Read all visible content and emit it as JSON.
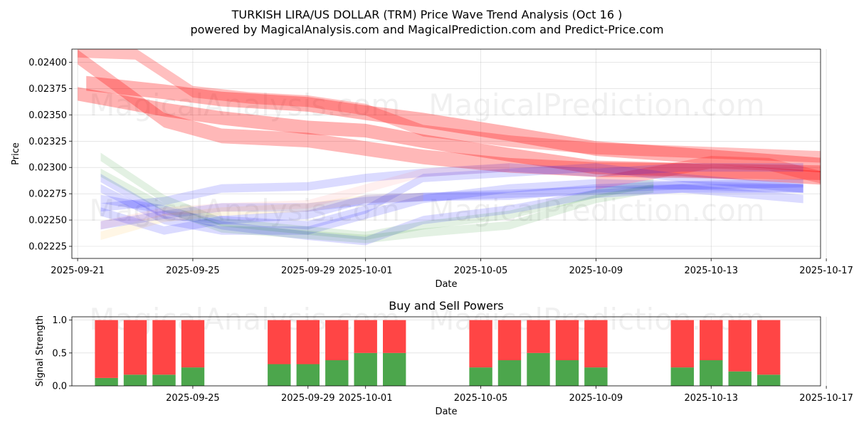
{
  "chart_data": [
    {
      "type": "area",
      "title": "TURKISH LIRA/US DOLLAR (TRM) Price Wave Trend Analysis (Oct 16 )",
      "subtitle": "powered by MagicalAnalysis.com and MagicalPrediction.com and Predict-Price.com",
      "xlabel": "Date",
      "ylabel": "Price",
      "xlim": [
        -0.2,
        25.8
      ],
      "ylim": [
        0.022135,
        0.024125
      ],
      "x_ticks": [
        {
          "x": 0,
          "label": "2025-09-21"
        },
        {
          "x": 4,
          "label": "2025-09-25"
        },
        {
          "x": 8,
          "label": "2025-09-29"
        },
        {
          "x": 10,
          "label": "2025-10-01"
        },
        {
          "x": 14,
          "label": "2025-10-05"
        },
        {
          "x": 18,
          "label": "2025-10-09"
        },
        {
          "x": 22,
          "label": "2025-10-13"
        },
        {
          "x": 26,
          "label": "2025-10-17"
        }
      ],
      "y_ticks": [
        {
          "y": 0.02225,
          "label": "0.02225"
        },
        {
          "y": 0.0225,
          "label": "0.02250"
        },
        {
          "y": 0.02275,
          "label": "0.02275"
        },
        {
          "y": 0.023,
          "label": "0.02300"
        },
        {
          "y": 0.02325,
          "label": "0.02325"
        },
        {
          "y": 0.0235,
          "label": "0.02350"
        },
        {
          "y": 0.02375,
          "label": "0.02375"
        },
        {
          "y": 0.024,
          "label": "0.02400"
        }
      ],
      "watermark": "MagicalAnalysis.com   MagicalPrediction.com",
      "series": [
        {
          "name": "red-wave-1",
          "color": "#ff0000",
          "opacity": 0.28,
          "width": 0.00014,
          "x": [
            0,
            3,
            5,
            8,
            10,
            12,
            15,
            18,
            21,
            25.9
          ],
          "y": [
            0.02405,
            0.02345,
            0.0233,
            0.02326,
            0.02318,
            0.0231,
            0.02302,
            0.02298,
            0.02297,
            0.02295
          ]
        },
        {
          "name": "red-wave-2",
          "color": "#ff0000",
          "opacity": 0.3,
          "width": 0.00013,
          "x": [
            0,
            3,
            5,
            8,
            10,
            12,
            15,
            18,
            21,
            25.9
          ],
          "y": [
            0.0237,
            0.02355,
            0.02347,
            0.02338,
            0.02335,
            0.02325,
            0.02312,
            0.023,
            0.02298,
            0.0229
          ]
        },
        {
          "name": "red-wave-3",
          "color": "#ff0000",
          "opacity": 0.3,
          "width": 0.00014,
          "x": [
            0.3,
            3,
            5,
            8,
            10,
            12,
            15,
            18,
            21,
            25.9
          ],
          "y": [
            0.0238,
            0.02372,
            0.02365,
            0.0236,
            0.02352,
            0.02345,
            0.02332,
            0.02318,
            0.02312,
            0.02302
          ]
        },
        {
          "name": "red-wave-4",
          "color": "#ff0000",
          "opacity": 0.25,
          "width": 0.00011,
          "x": [
            0,
            2,
            4,
            6,
            8,
            10,
            12,
            15,
            18,
            21,
            25.9
          ],
          "y": [
            0.0241,
            0.02408,
            0.02372,
            0.02366,
            0.02363,
            0.02355,
            0.02335,
            0.02325,
            0.02318,
            0.02315,
            0.0231
          ]
        },
        {
          "name": "red-wave-5",
          "color": "#ff0000",
          "opacity": 0.22,
          "width": 0.00012,
          "x": [
            18,
            20,
            22,
            24,
            25.9
          ],
          "y": [
            0.02285,
            0.02295,
            0.02305,
            0.02303,
            0.0229
          ]
        },
        {
          "name": "blue-wave-1",
          "color": "#0000ff",
          "opacity": 0.14,
          "width": 8e-05,
          "x": [
            0.8,
            3,
            5,
            8,
            10,
            12,
            15,
            18,
            21,
            25.2
          ],
          "y": [
            0.02262,
            0.02268,
            0.0228,
            0.02282,
            0.0229,
            0.02295,
            0.023,
            0.02295,
            0.023,
            0.023
          ]
        },
        {
          "name": "blue-wave-2",
          "color": "#0000ff",
          "opacity": 0.14,
          "width": 8e-05,
          "x": [
            0.8,
            3,
            5,
            8,
            10,
            12,
            15,
            18,
            21,
            25.2
          ],
          "y": [
            0.02258,
            0.0224,
            0.0225,
            0.02255,
            0.0227,
            0.02272,
            0.02273,
            0.0228,
            0.02283,
            0.02285
          ]
        },
        {
          "name": "blue-wave-3",
          "color": "#0000ff",
          "opacity": 0.14,
          "width": 8e-05,
          "x": [
            0.8,
            3,
            5,
            8,
            10,
            12,
            15,
            18,
            21,
            25.2
          ],
          "y": [
            0.02245,
            0.02255,
            0.02262,
            0.02262,
            0.02268,
            0.02272,
            0.02275,
            0.02278,
            0.0228,
            0.0228
          ]
        },
        {
          "name": "blue-wave-4",
          "color": "#0000ff",
          "opacity": 0.14,
          "width": 8e-05,
          "x": [
            0.8,
            3,
            5,
            8,
            10,
            12,
            15,
            18,
            21,
            25.2
          ],
          "y": [
            0.0228,
            0.0225,
            0.0224,
            0.0224,
            0.02255,
            0.0227,
            0.0228,
            0.02285,
            0.02283,
            0.0228
          ]
        },
        {
          "name": "blue-wave-5",
          "color": "#0000ff",
          "opacity": 0.14,
          "width": 8e-05,
          "x": [
            0.8,
            3,
            5,
            8,
            10,
            12,
            15,
            18,
            21,
            25.2
          ],
          "y": [
            0.0227,
            0.0226,
            0.02245,
            0.02235,
            0.0223,
            0.0225,
            0.0226,
            0.02275,
            0.0228,
            0.0227
          ]
        },
        {
          "name": "blue-wave-6",
          "color": "#0000ff",
          "opacity": 0.14,
          "width": 8e-05,
          "x": [
            0.8,
            3,
            5,
            8,
            10,
            12,
            15,
            18,
            21,
            25.2
          ],
          "y": [
            0.0229,
            0.02255,
            0.0225,
            0.02245,
            0.0226,
            0.0229,
            0.02295,
            0.023,
            0.0229,
            0.0228
          ]
        },
        {
          "name": "green-wave-1",
          "color": "#008000",
          "opacity": 0.11,
          "width": 8e-05,
          "x": [
            0.8,
            3,
            5,
            8,
            10,
            12,
            15,
            18,
            20
          ],
          "y": [
            0.0231,
            0.0227,
            0.02248,
            0.0224,
            0.02235,
            0.02245,
            0.02255,
            0.02275,
            0.02285
          ]
        },
        {
          "name": "green-wave-2",
          "color": "#008000",
          "opacity": 0.11,
          "width": 8e-05,
          "x": [
            0.8,
            3,
            5,
            8,
            10,
            12,
            15,
            18,
            20
          ],
          "y": [
            0.02295,
            0.02262,
            0.02242,
            0.02236,
            0.02232,
            0.02238,
            0.02245,
            0.0227,
            0.0228
          ]
        },
        {
          "name": "orange-wave-1",
          "color": "#ffa500",
          "opacity": 0.1,
          "width": 8e-05,
          "x": [
            0.8,
            3,
            5,
            8,
            10,
            12
          ],
          "y": [
            0.02235,
            0.02252,
            0.02258,
            0.02262,
            0.0227,
            0.02272
          ]
        },
        {
          "name": "pink-wave-1",
          "color": "#ff6666",
          "opacity": 0.1,
          "width": 8e-05,
          "x": [
            0.8,
            3,
            5,
            8,
            10,
            12,
            15
          ],
          "y": [
            0.02245,
            0.02258,
            0.02262,
            0.02265,
            0.0228,
            0.02295,
            0.023
          ]
        }
      ]
    },
    {
      "type": "bar",
      "title": "Buy and Sell Powers",
      "xlabel": "Date",
      "ylabel": "Signal Strength",
      "xlim": [
        -0.2,
        25.8
      ],
      "ylim": [
        0,
        1.05
      ],
      "y_ticks": [
        {
          "y": 0,
          "label": "0.0"
        },
        {
          "y": 0.5,
          "label": "0.5"
        },
        {
          "y": 1,
          "label": "1.0"
        }
      ],
      "x_ticks": [
        {
          "x": 4,
          "label": "2025-09-25"
        },
        {
          "x": 8,
          "label": "2025-09-29"
        },
        {
          "x": 10,
          "label": "2025-10-01"
        },
        {
          "x": 14,
          "label": "2025-10-05"
        },
        {
          "x": 18,
          "label": "2025-10-09"
        },
        {
          "x": 22,
          "label": "2025-10-13"
        },
        {
          "x": 26,
          "label": "2025-10-17"
        }
      ],
      "x": [
        1,
        2,
        3,
        4,
        7,
        8,
        9,
        10,
        11,
        14,
        15,
        16,
        17,
        18,
        21,
        22,
        23,
        24
      ],
      "series": [
        {
          "name": "Buy",
          "color": "#4ca64c",
          "values": [
            0.12,
            0.17,
            0.17,
            0.28,
            0.33,
            0.33,
            0.39,
            0.5,
            0.5,
            0.28,
            0.39,
            0.5,
            0.39,
            0.28,
            0.28,
            0.39,
            0.22,
            0.17
          ]
        },
        {
          "name": "Sell",
          "color": "#ff4545",
          "values": [
            0.88,
            0.83,
            0.83,
            0.72,
            0.67,
            0.67,
            0.61,
            0.5,
            0.5,
            0.72,
            0.61,
            0.5,
            0.61,
            0.72,
            0.72,
            0.61,
            0.78,
            0.83
          ]
        }
      ],
      "watermark": "MagicalAnalysis.com   MagicalPrediction.com"
    }
  ]
}
